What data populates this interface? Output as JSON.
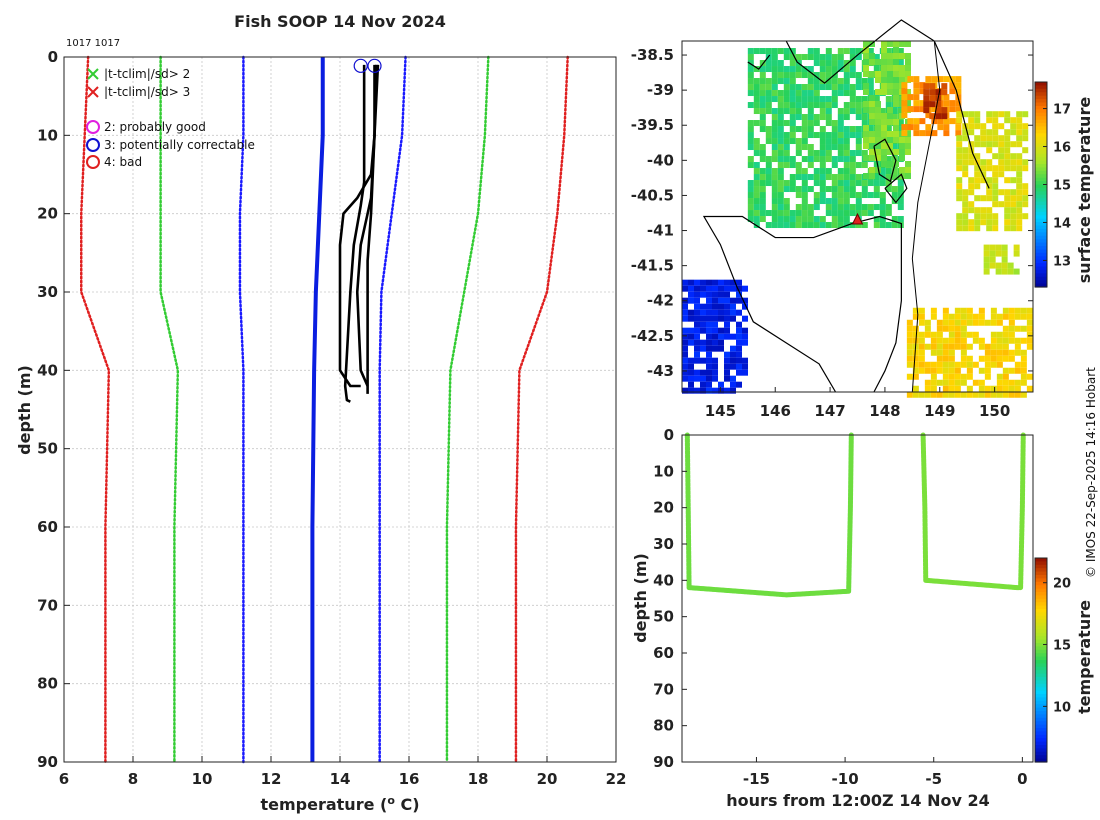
{
  "title": "Fish SOOP 14 Nov 2024",
  "ids_label": "1017 1017",
  "credit": "© IMOS 22-Sep-2025 14:16 Hobart",
  "colors": {
    "clim2": "#33cc33",
    "clim3": "#e02020",
    "flag2": "#e020e0",
    "flag3": "#1010d0",
    "flag4": "#e02020",
    "dotted_blue": "#1a1aff",
    "climatology": "#0a1ee0",
    "profile": "#000000"
  },
  "chart_data": [
    {
      "type": "line",
      "name": "profile",
      "xlabel": "temperature (o C)",
      "ylabel": "depth (m)",
      "xlim": [
        6,
        22
      ],
      "ylim": [
        0,
        90
      ],
      "y_reversed": true,
      "x_ticks": [
        6,
        8,
        10,
        12,
        14,
        16,
        18,
        20,
        22
      ],
      "y_ticks": [
        0,
        10,
        20,
        30,
        40,
        50,
        60,
        70,
        80,
        90
      ],
      "legend": [
        {
          "marker": "x",
          "color_key": "clim2",
          "label": "|t-tclim|/sd> 2"
        },
        {
          "marker": "x",
          "color_key": "clim3",
          "label": "|t-tclim|/sd> 3"
        },
        {
          "marker": "o",
          "color_key": "flag2",
          "label": "2: probably good"
        },
        {
          "marker": "o",
          "color_key": "flag3",
          "label": "3: potentially correctable"
        },
        {
          "marker": "o",
          "color_key": "flag4",
          "label": "4: bad"
        }
      ],
      "series": [
        {
          "name": "clim -3sd",
          "style": "dotted",
          "color_key": "clim3",
          "x": [
            6.7,
            6.6,
            6.5,
            6.5,
            7.3,
            7.2,
            7.2
          ],
          "y": [
            0,
            10,
            20,
            30,
            40,
            60,
            90
          ]
        },
        {
          "name": "clim -2sd",
          "style": "dotted",
          "color_key": "clim2",
          "x": [
            8.8,
            8.8,
            8.8,
            8.8,
            9.3,
            9.2,
            9.2
          ],
          "y": [
            0,
            10,
            20,
            30,
            40,
            60,
            90
          ]
        },
        {
          "name": "clim -1sd",
          "style": "dotted",
          "color_key": "dotted_blue",
          "x": [
            11.2,
            11.2,
            11.1,
            11.1,
            11.2,
            11.2,
            11.2
          ],
          "y": [
            0,
            10,
            20,
            30,
            40,
            60,
            90
          ]
        },
        {
          "name": "climatology mean",
          "style": "solid",
          "color_key": "climatology",
          "x": [
            13.5,
            13.5,
            13.4,
            13.3,
            13.25,
            13.2,
            13.2
          ],
          "y": [
            0,
            10,
            20,
            30,
            40,
            60,
            90
          ]
        },
        {
          "name": "clim +1sd",
          "style": "dotted",
          "color_key": "dotted_blue",
          "x": [
            15.9,
            15.8,
            15.5,
            15.2,
            15.15,
            15.15,
            15.15
          ],
          "y": [
            0,
            10,
            20,
            30,
            40,
            60,
            90
          ]
        },
        {
          "name": "clim +2sd",
          "style": "dotted",
          "color_key": "clim2",
          "x": [
            18.3,
            18.2,
            18.0,
            17.6,
            17.2,
            17.1,
            17.1
          ],
          "y": [
            0,
            10,
            20,
            30,
            40,
            60,
            90
          ]
        },
        {
          "name": "clim +3sd",
          "style": "dotted",
          "color_key": "clim3",
          "x": [
            20.6,
            20.5,
            20.3,
            20.0,
            19.2,
            19.1,
            19.1
          ],
          "y": [
            0,
            10,
            20,
            30,
            40,
            60,
            90
          ]
        },
        {
          "name": "profile 1",
          "style": "solid",
          "color_key": "profile",
          "x": [
            14.7,
            14.7,
            14.7,
            14.6,
            14.4,
            14.3,
            14.2,
            14.15,
            14.2,
            14.3
          ],
          "y": [
            1,
            10,
            16,
            19,
            24,
            30,
            38,
            42,
            43.8,
            44
          ]
        },
        {
          "name": "profile 2",
          "style": "solid",
          "color_key": "profile",
          "x": [
            15.0,
            15.0,
            14.9,
            14.5,
            14.1,
            14.0,
            14.0,
            14.0,
            14.3,
            14.6
          ],
          "y": [
            1,
            10,
            15,
            18,
            20,
            24,
            30,
            40,
            42,
            42
          ]
        },
        {
          "name": "profile 3",
          "style": "solid",
          "color_key": "profile",
          "x": [
            15.05,
            15.0,
            14.9,
            14.8,
            14.8,
            14.8
          ],
          "y": [
            1,
            10,
            20,
            26,
            35,
            43
          ]
        },
        {
          "name": "profile 4",
          "style": "solid",
          "color_key": "profile",
          "x": [
            15.1,
            15.0,
            14.9,
            14.6,
            14.5,
            14.6,
            14.8
          ],
          "y": [
            1,
            10,
            18,
            24,
            30,
            40,
            42
          ]
        }
      ],
      "flag_points": [
        {
          "flag": 3,
          "x": 14.6,
          "y": 1
        },
        {
          "flag": 3,
          "x": 15.0,
          "y": 1
        }
      ]
    },
    {
      "type": "heatmap",
      "name": "surface temperature map",
      "xlim": [
        144.3,
        150.7
      ],
      "ylim": [
        -43.3,
        -38.3
      ],
      "x_ticks": [
        145,
        146,
        147,
        148,
        149,
        150
      ],
      "x_tick_labels": [
        "145",
        "146",
        "147",
        "148",
        "149",
        "150"
      ],
      "y_ticks": [
        -38.5,
        -39,
        -39.5,
        -40,
        -40.5,
        -41,
        -41.5,
        -42,
        -42.5,
        -43
      ],
      "y_tick_labels": [
        "-38.5",
        "-39",
        "-39.5",
        "-40",
        "-40.5",
        "-41",
        "-41.5",
        "-42",
        "-42.5",
        "-43"
      ],
      "colorbar": {
        "label": "surface temperature",
        "range": [
          12.3,
          17.7
        ],
        "ticks": [
          13,
          14,
          15,
          16,
          17
        ]
      },
      "patches": [
        {
          "lon": [
            145.5,
            148.3
          ],
          "lat": [
            -40.9,
            -38.4
          ],
          "value": 15.0
        },
        {
          "lon": [
            147.6,
            148.4
          ],
          "lat": [
            -40.2,
            -38.3
          ],
          "value": 15.4
        },
        {
          "lon": [
            148.3,
            149.3
          ],
          "lat": [
            -39.6,
            -38.8
          ],
          "value": 16.8
        },
        {
          "lon": [
            148.7,
            149.1
          ],
          "lat": [
            -39.4,
            -38.9
          ],
          "value": 17.4
        },
        {
          "lon": [
            149.3,
            150.6
          ],
          "lat": [
            -41.0,
            -39.3
          ],
          "value": 16.0
        },
        {
          "lon": [
            148.4,
            150.6
          ],
          "lat": [
            -43.3,
            -42.1
          ],
          "value": 16.3
        },
        {
          "lon": [
            144.3,
            145.5
          ],
          "lat": [
            -43.3,
            -41.7
          ],
          "value": 12.8
        },
        {
          "lon": [
            149.8,
            150.4
          ],
          "lat": [
            -41.6,
            -41.2
          ],
          "value": 15.8
        }
      ],
      "marker": {
        "lon": 147.5,
        "lat": -40.85,
        "color_key": "clim3"
      }
    },
    {
      "type": "scatter",
      "name": "depth time section",
      "xlabel": "hours from 12:00Z 14 Nov 24",
      "ylabel": "depth (m)",
      "xlim": [
        -19.2,
        0.6
      ],
      "ylim": [
        0,
        90
      ],
      "y_reversed": true,
      "x_ticks": [
        -15,
        -10,
        -5,
        0
      ],
      "x_tick_labels": [
        "-15",
        "-10",
        "-5",
        "0"
      ],
      "y_ticks": [
        0,
        10,
        20,
        30,
        40,
        50,
        60,
        70,
        80,
        90
      ],
      "colorbar": {
        "label": "temperature",
        "range": [
          5.5,
          22
        ],
        "ticks": [
          10,
          15,
          20
        ]
      },
      "series": [
        {
          "name": "cast 1",
          "x": [
            -18.9,
            -18.85,
            -18.8,
            -13.3,
            -9.8,
            -9.7,
            -9.65
          ],
          "y": [
            0,
            20,
            42,
            44,
            43,
            20,
            0
          ],
          "value": 14.8
        },
        {
          "name": "cast 2",
          "x": [
            -5.6,
            -5.5,
            -5.45,
            -0.3,
            -0.1,
            0.0,
            0.05
          ],
          "y": [
            0,
            20,
            40,
            42,
            42,
            20,
            0
          ],
          "value": 15.0
        }
      ]
    }
  ]
}
